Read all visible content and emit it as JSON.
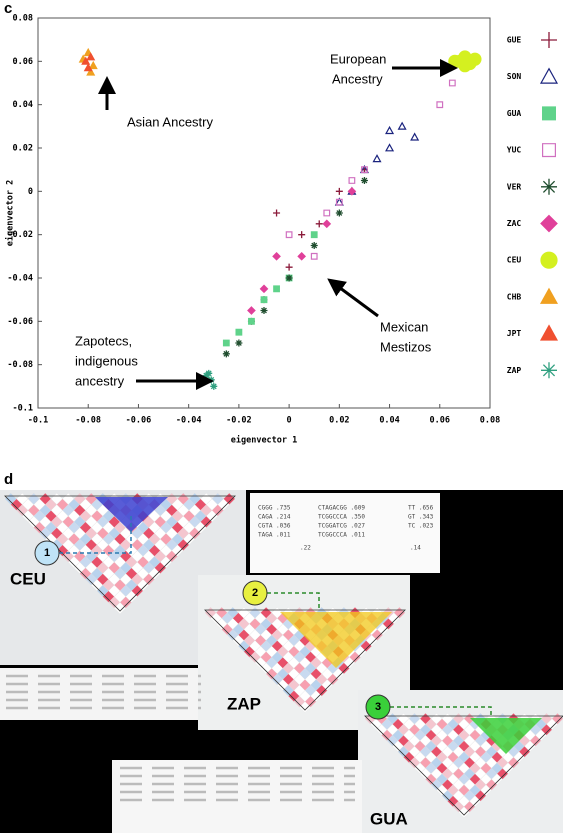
{
  "chart_data": {
    "type": "scatter",
    "panel_label": "c",
    "xlabel": "eigenvector 1",
    "ylabel": "eigenvector 2",
    "xlim": [
      -0.1,
      0.08
    ],
    "ylim": [
      -0.1,
      0.08
    ],
    "xticks": [
      -0.1,
      -0.08,
      -0.06,
      -0.04,
      -0.02,
      0,
      0.02,
      0.04,
      0.06,
      0.08
    ],
    "yticks": [
      -0.1,
      -0.08,
      -0.06,
      -0.04,
      -0.02,
      0,
      0.02,
      0.04,
      0.06,
      0.08
    ],
    "series": [
      {
        "name": "GUE",
        "color": "#8b1a3a",
        "marker": "plus",
        "filled": false,
        "x": [
          -0.005,
          0.0,
          0.005,
          -0.01,
          0.012,
          0.02,
          -0.015,
          0.03
        ],
        "y": [
          -0.01,
          -0.035,
          -0.02,
          -0.05,
          -0.015,
          0.0,
          -0.06,
          0.01
        ]
      },
      {
        "name": "SON",
        "color": "#1a237e",
        "marker": "triangle",
        "filled": false,
        "x": [
          0.02,
          0.03,
          0.035,
          0.04,
          0.045,
          0.05,
          0.025,
          0.04
        ],
        "y": [
          -0.005,
          0.01,
          0.015,
          0.02,
          0.03,
          0.025,
          0.0,
          0.028
        ]
      },
      {
        "name": "GUA",
        "color": "#5fd38a",
        "marker": "square",
        "filled": true,
        "x": [
          -0.02,
          -0.015,
          -0.01,
          -0.005,
          0.0,
          0.01,
          -0.025
        ],
        "y": [
          -0.065,
          -0.06,
          -0.05,
          -0.045,
          -0.04,
          -0.02,
          -0.07
        ]
      },
      {
        "name": "YUC",
        "color": "#d070c0",
        "marker": "square",
        "filled": false,
        "x": [
          0.0,
          0.01,
          0.02,
          0.03,
          0.06,
          0.065,
          0.025,
          0.015
        ],
        "y": [
          -0.02,
          -0.03,
          -0.005,
          0.01,
          0.04,
          0.05,
          0.005,
          -0.01
        ]
      },
      {
        "name": "VER",
        "color": "#1f4d2e",
        "marker": "star",
        "filled": false,
        "x": [
          -0.025,
          -0.02,
          -0.01,
          0.0,
          0.01,
          0.02,
          0.03
        ],
        "y": [
          -0.075,
          -0.07,
          -0.055,
          -0.04,
          -0.025,
          -0.01,
          0.005
        ]
      },
      {
        "name": "ZAC",
        "color": "#e0409a",
        "marker": "diamond",
        "filled": true,
        "x": [
          -0.015,
          -0.005,
          0.005,
          0.015,
          0.025,
          -0.01
        ],
        "y": [
          -0.055,
          -0.03,
          -0.03,
          -0.015,
          0.0,
          -0.045
        ]
      },
      {
        "name": "CEU",
        "color": "#d4f020",
        "marker": "blob",
        "filled": true,
        "x": [
          0.068,
          0.07,
          0.072,
          0.074,
          0.07,
          0.066
        ],
        "y": [
          0.06,
          0.062,
          0.059,
          0.061,
          0.058,
          0.06
        ]
      },
      {
        "name": "CHB",
        "color": "#f0a020",
        "marker": "triangle",
        "filled": true,
        "x": [
          -0.08,
          -0.078,
          -0.082,
          -0.079
        ],
        "y": [
          0.064,
          0.058,
          0.061,
          0.055
        ]
      },
      {
        "name": "JPT",
        "color": "#f05030",
        "marker": "triangle",
        "filled": true,
        "x": [
          -0.081,
          -0.079,
          -0.08
        ],
        "y": [
          0.06,
          0.062,
          0.057
        ]
      },
      {
        "name": "ZAP",
        "color": "#30a080",
        "marker": "star",
        "filled": false,
        "x": [
          -0.033,
          -0.031,
          -0.034,
          -0.032,
          -0.03
        ],
        "y": [
          -0.085,
          -0.087,
          -0.088,
          -0.084,
          -0.09
        ]
      }
    ],
    "annotations": [
      {
        "lines": [
          "European",
          "Ancestry"
        ]
      },
      {
        "lines": [
          "Asian Ancestry"
        ]
      },
      {
        "lines": [
          "Zapotecs,",
          "indigenous",
          "ancestry"
        ]
      },
      {
        "lines": [
          "Mexican",
          "Mestizos"
        ]
      }
    ]
  },
  "panel_d": {
    "label": "d",
    "populations": [
      {
        "name": "CEU",
        "block": "1"
      },
      {
        "name": "ZAP",
        "block": "2"
      },
      {
        "name": "GUA",
        "block": "3"
      }
    ],
    "haplotypes": [
      "CGGG .735",
      "CAGA .214",
      "CGTA .036",
      "TAGA .011",
      "CTAGACGG .609",
      "TCGGCCCA .350",
      "TCGGATCG .027",
      "TCGGCCCA .011",
      "TT .656",
      "GT .343",
      "TC .023",
      ".22",
      ".14"
    ]
  }
}
